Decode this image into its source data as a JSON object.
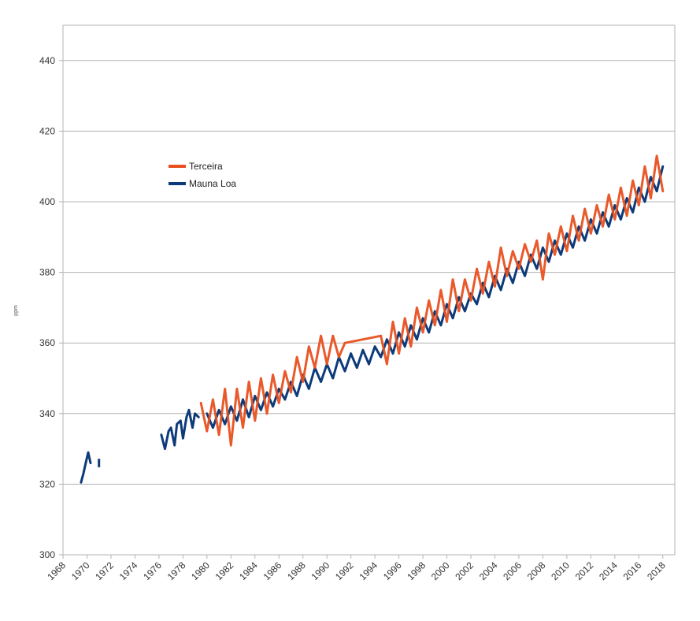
{
  "chart_data": {
    "type": "line",
    "title": "",
    "xlabel": "",
    "ylabel": "ppm",
    "xlim": [
      1968,
      2019
    ],
    "ylim": [
      300,
      450
    ],
    "yticks": [
      300,
      320,
      340,
      360,
      380,
      400,
      420,
      440
    ],
    "xticks": [
      "1968",
      "1970",
      "1972",
      "1974",
      "1976",
      "1978",
      "1980",
      "1982",
      "1984",
      "1986",
      "1988",
      "1990",
      "1992",
      "1994",
      "1996",
      "1998",
      "2000",
      "2002",
      "2004",
      "2006",
      "2008",
      "2010",
      "2012",
      "2014",
      "2016",
      "2018"
    ],
    "grid": true,
    "legend": {
      "position": "upper-left"
    },
    "series": [
      {
        "name": "Terceira",
        "color": "#e8501f",
        "x": [
          1979.5,
          1980.0,
          1980.5,
          1981.0,
          1981.5,
          1982.0,
          1982.5,
          1983.0,
          1983.5,
          1984.0,
          1984.5,
          1985.0,
          1985.5,
          1986.0,
          1986.5,
          1987.0,
          1987.5,
          1988.0,
          1988.5,
          1989.0,
          1989.5,
          1990.0,
          1990.5,
          1991.0,
          1991.5,
          1994.5,
          1995.0,
          1995.5,
          1996.0,
          1996.5,
          1997.0,
          1997.5,
          1998.0,
          1998.5,
          1999.0,
          1999.5,
          2000.0,
          2000.5,
          2001.0,
          2001.5,
          2002.0,
          2002.5,
          2003.0,
          2003.5,
          2004.0,
          2004.5,
          2005.0,
          2005.5,
          2006.0,
          2006.5,
          2007.0,
          2007.5,
          2008.0,
          2008.5,
          2009.0,
          2009.5,
          2010.0,
          2010.5,
          2011.0,
          2011.5,
          2012.0,
          2012.5,
          2013.0,
          2013.5,
          2014.0,
          2014.5,
          2015.0,
          2015.5,
          2016.0,
          2016.5,
          2017.0,
          2017.5,
          2018.0
        ],
        "y": [
          343,
          335,
          344,
          334,
          347,
          331,
          347,
          336,
          349,
          338,
          350,
          340,
          351,
          343,
          352,
          346,
          356,
          349,
          359,
          353,
          362,
          354,
          362,
          356,
          360,
          362,
          354,
          366,
          357,
          367,
          359,
          370,
          363,
          372,
          365,
          375,
          366,
          378,
          369,
          378,
          372,
          381,
          374,
          383,
          376,
          387,
          379,
          386,
          381,
          388,
          383,
          389,
          378,
          391,
          385,
          393,
          386,
          396,
          389,
          398,
          391,
          399,
          393,
          402,
          395,
          404,
          396,
          406,
          399,
          410,
          401,
          413,
          403
        ]
      },
      {
        "name": "Mauna Loa",
        "color": "#0d3b7a",
        "segments": [
          {
            "x": [
              1969.5,
              1969.7,
              1969.9,
              1970.1,
              1970.3
            ],
            "y": [
              320.5,
              323.0,
              326.0,
              329.0,
              326.0
            ]
          },
          {
            "x": [
              1971.0
            ],
            "y": [
              326.0
            ]
          },
          {
            "x": [
              1976.2,
              1976.5,
              1976.8,
              1977.0,
              1977.3,
              1977.5,
              1977.8,
              1978.0,
              1978.3,
              1978.5,
              1978.8,
              1979.0,
              1979.3
            ],
            "y": [
              334,
              330,
              335,
              336,
              331,
              337,
              338,
              333,
              339,
              341,
              336,
              340,
              339
            ]
          },
          {
            "x": [
              1980.0,
              1980.5,
              1981.0,
              1981.5,
              1982.0,
              1982.5,
              1983.0,
              1983.5,
              1984.0,
              1984.5,
              1985.0,
              1985.5,
              1986.0,
              1986.5,
              1987.0,
              1987.5,
              1988.0,
              1988.5,
              1989.0,
              1989.5,
              1990.0,
              1990.5,
              1991.0,
              1991.5,
              1992.0,
              1992.5,
              1993.0,
              1993.5,
              1994.0,
              1994.5,
              1995.0,
              1995.5,
              1996.0,
              1996.5,
              1997.0,
              1997.5,
              1998.0,
              1998.5,
              1999.0,
              1999.5,
              2000.0,
              2000.5,
              2001.0,
              2001.5,
              2002.0,
              2002.5,
              2003.0,
              2003.5,
              2004.0,
              2004.5,
              2005.0,
              2005.5,
              2006.0,
              2006.5,
              2007.0,
              2007.5,
              2008.0,
              2008.5,
              2009.0,
              2009.5,
              2010.0,
              2010.5,
              2011.0,
              2011.5,
              2012.0,
              2012.5,
              2013.0,
              2013.5,
              2014.0,
              2014.5,
              2015.0,
              2015.5,
              2016.0,
              2016.5,
              2017.0,
              2017.5,
              2018.0
            ],
            "y": [
              340,
              336,
              341,
              337,
              342,
              338,
              344,
              339,
              345,
              341,
              346,
              342,
              347,
              344,
              349,
              345,
              351,
              347,
              353,
              349,
              354,
              350,
              356,
              352,
              357,
              353,
              358,
              354,
              359,
              356,
              361,
              357,
              363,
              359,
              365,
              361,
              367,
              363,
              369,
              365,
              371,
              367,
              373,
              369,
              374,
              371,
              377,
              373,
              379,
              375,
              381,
              377,
              383,
              379,
              385,
              381,
              387,
              383,
              389,
              385,
              391,
              387,
              393,
              389,
              395,
              391,
              397,
              393,
              399,
              395,
              401,
              397,
              404,
              400,
              407,
              403,
              410
            ]
          }
        ]
      }
    ]
  }
}
